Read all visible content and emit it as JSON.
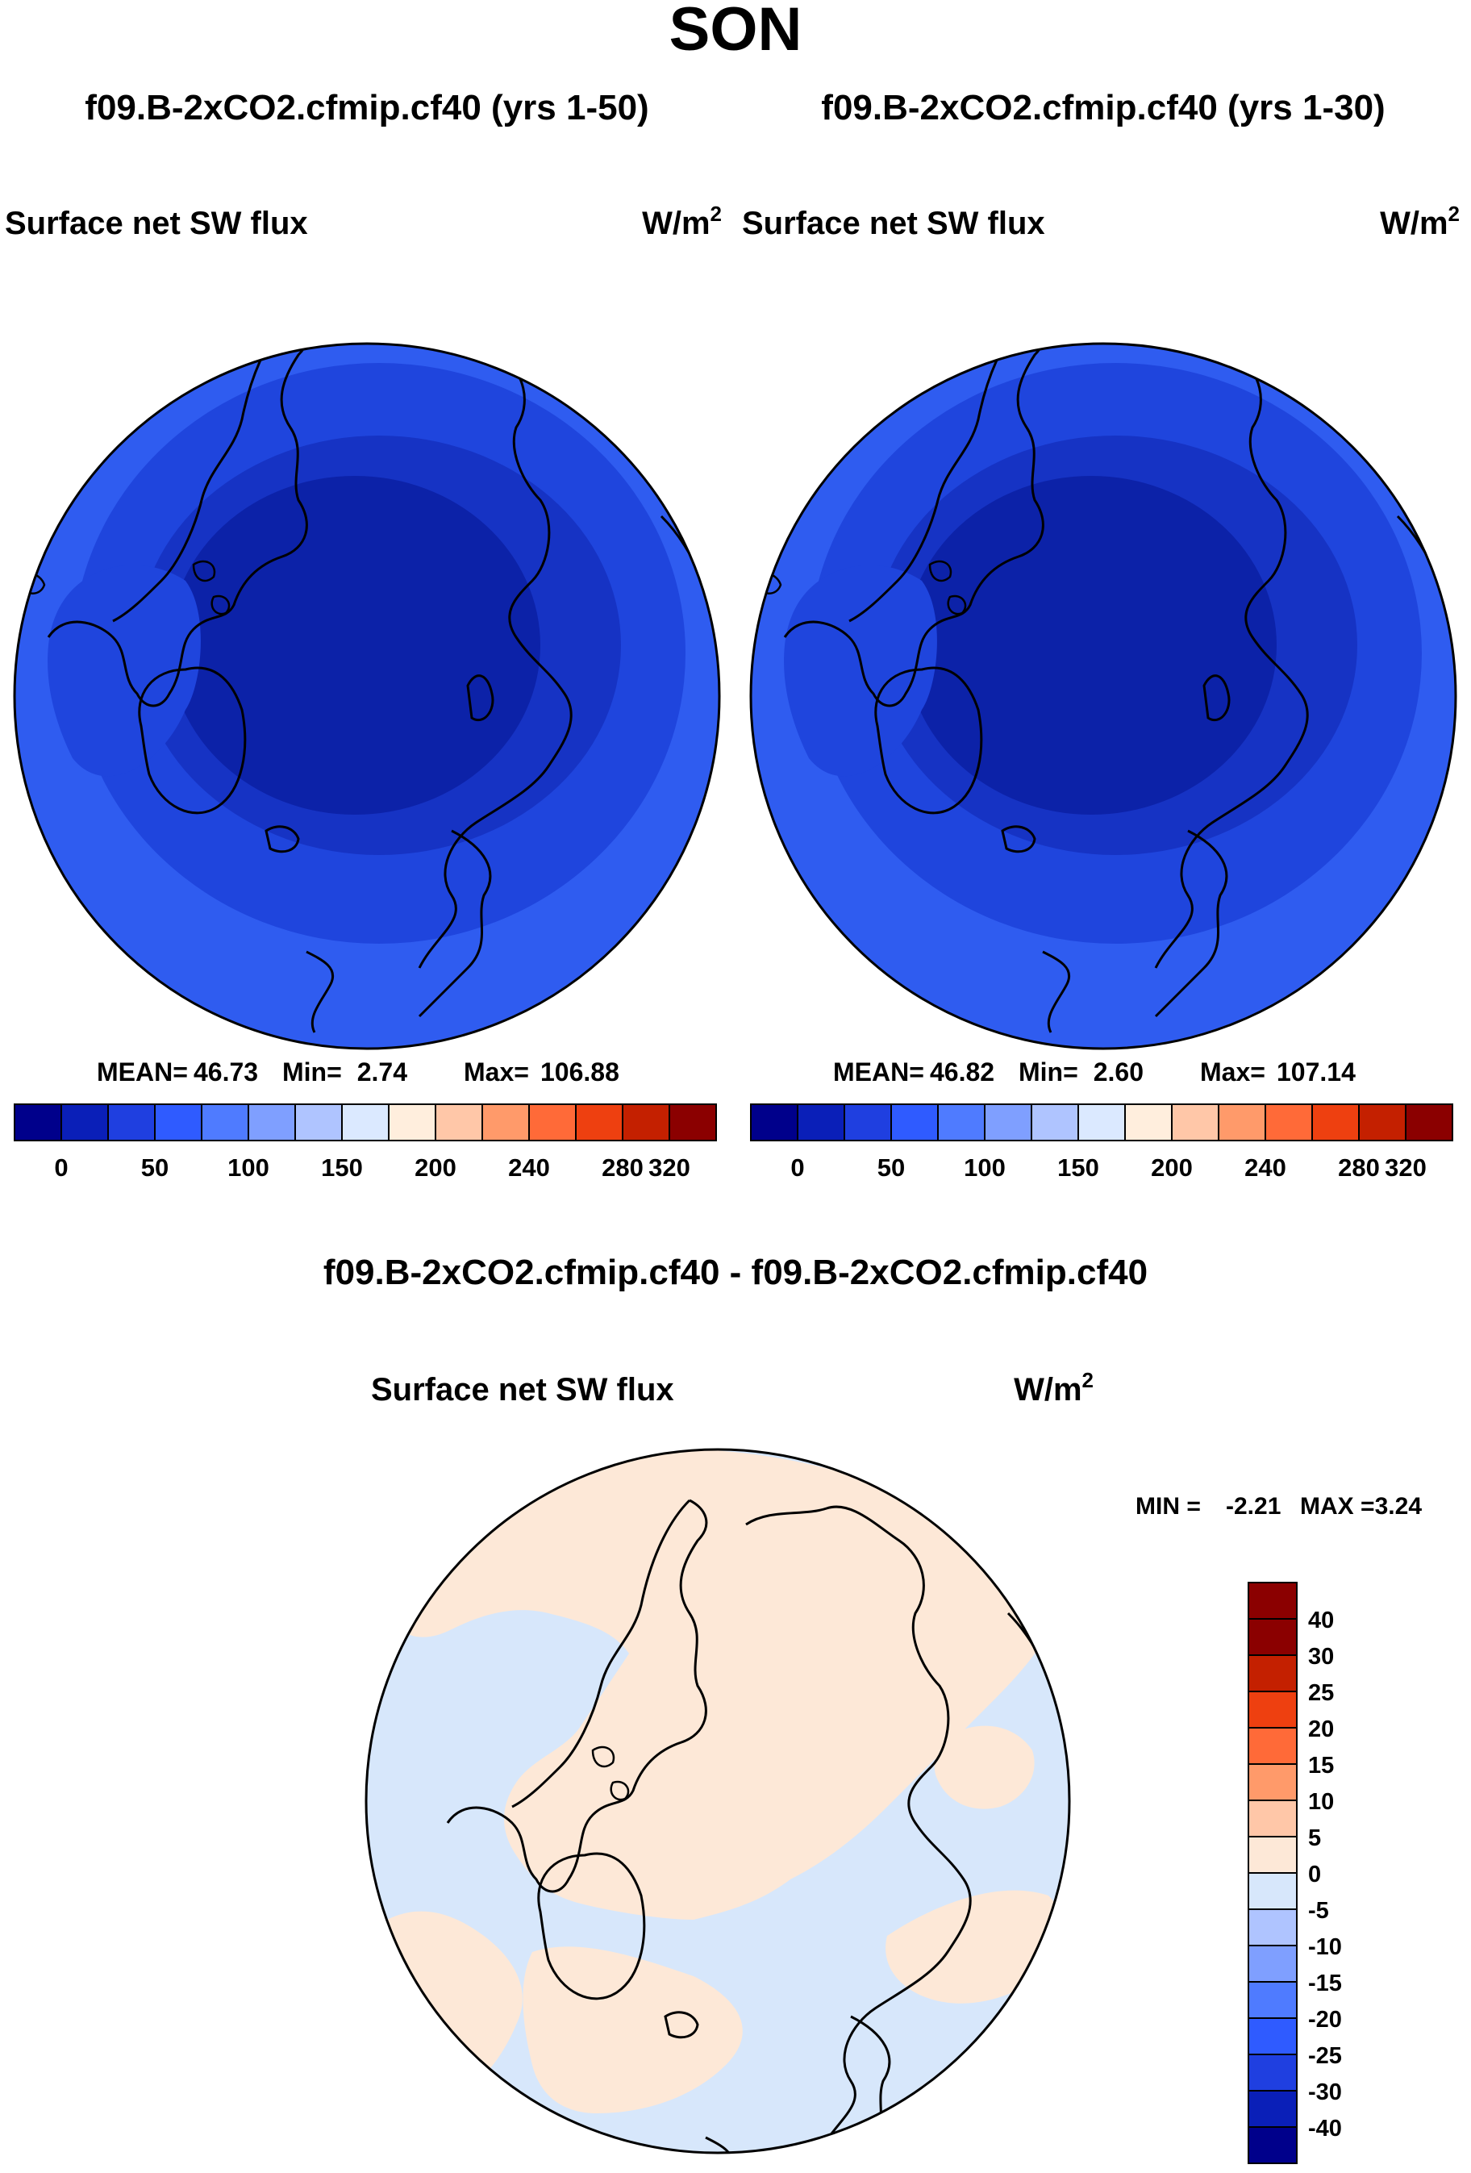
{
  "figure": {
    "season": "SON",
    "panels": [
      {
        "case": "f09.B-2xCO2.cfmip.cf40 (yrs 1-50)",
        "variable": "Surface net SW flux",
        "units_base": "W/m",
        "units_exp": "2",
        "stats": {
          "mean_label": "MEAN=",
          "mean": "46.73",
          "min_label": "Min=",
          "min": "2.74",
          "max_label": "Max=",
          "max": "106.88"
        },
        "colorbar_labels": [
          "0",
          "50",
          "100",
          "150",
          "200",
          "240",
          "280",
          "320"
        ]
      },
      {
        "case": "f09.B-2xCO2.cfmip.cf40 (yrs 1-30)",
        "variable": "Surface net SW flux",
        "units_base": "W/m",
        "units_exp": "2",
        "stats": {
          "mean_label": "MEAN=",
          "mean": "46.82",
          "min_label": "Min=",
          "min": "2.60",
          "max_label": "Max=",
          "max": "107.14"
        },
        "colorbar_labels": [
          "0",
          "50",
          "100",
          "150",
          "200",
          "240",
          "280",
          "320"
        ]
      }
    ],
    "difference": {
      "title": "f09.B-2xCO2.cfmip.cf40 - f09.B-2xCO2.cfmip.cf40",
      "variable": "Surface net SW flux",
      "units_base": "W/m",
      "units_exp": "2",
      "min_label": "MIN =",
      "min": "-2.21",
      "max_label": "MAX =",
      "max": "3.24",
      "colorbar_labels": [
        "40",
        "30",
        "25",
        "20",
        "15",
        "10",
        "5",
        "0",
        "-5",
        "-10",
        "-15",
        "-20",
        "-25",
        "-30",
        "-40"
      ]
    }
  },
  "colors": {
    "absolute_scale": [
      "#00008b",
      "#0a1fb8",
      "#1f3fe0",
      "#2f5bff",
      "#4f7bff",
      "#7f9fff",
      "#afc4ff",
      "#dbe9ff",
      "#ffeedd",
      "#ffc7a8",
      "#ff9a6a",
      "#ff6a38",
      "#ee4010",
      "#c42000",
      "#8b0000"
    ],
    "difference_scale": [
      "#8b0000",
      "#c42000",
      "#ee4010",
      "#ff6a38",
      "#ff9a6a",
      "#ffc7a8",
      "#fde8d7",
      "#d7e7fb",
      "#afc4ff",
      "#7f9fff",
      "#4f7bff",
      "#2f5bff",
      "#1f3fe0",
      "#0a1fb8",
      "#00008b"
    ],
    "map_shades": {
      "outer": "#2f5cf0",
      "mid": "#1f45dd",
      "inner": "#1633c4",
      "core": "#0c22a8",
      "diff_pos": "#fde8d7",
      "diff_neg": "#d7e7fb"
    }
  }
}
